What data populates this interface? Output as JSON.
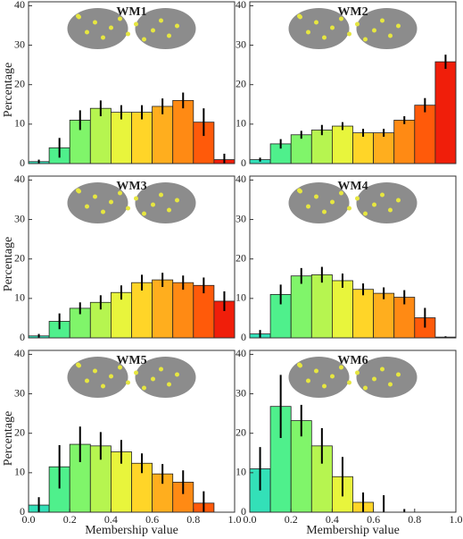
{
  "chart_data": [
    {
      "type": "histogram",
      "title": "WM1",
      "ylabel": "Percentage",
      "bins": [
        0,
        0.1,
        0.2,
        0.3,
        0.4,
        0.5,
        0.6,
        0.7,
        0.8,
        0.9,
        1.0
      ],
      "values": [
        0.5,
        4,
        11,
        14,
        13,
        13,
        14.5,
        16,
        10.5,
        1
      ],
      "errors": [
        0.5,
        2.5,
        2.5,
        2,
        1.8,
        1.8,
        2,
        2,
        3.5,
        1.5
      ],
      "colors": [
        "#33e0b8",
        "#4ff08c",
        "#80f56a",
        "#b6f550",
        "#e8f53c",
        "#ffd528",
        "#ffae1e",
        "#ff8a14",
        "#ff5a0a",
        "#f01e0a"
      ],
      "xlim": [
        0,
        1
      ],
      "ylim": [
        0,
        41
      ],
      "yticks": [
        0,
        10,
        20,
        30,
        40
      ]
    },
    {
      "type": "histogram",
      "title": "WM2",
      "bins": [
        0,
        0.1,
        0.2,
        0.3,
        0.4,
        0.5,
        0.6,
        0.7,
        0.8,
        0.9,
        1.0
      ],
      "values": [
        1,
        5,
        7.3,
        8.5,
        9.5,
        7.8,
        7.8,
        11,
        14.8,
        25.8
      ],
      "errors": [
        0.5,
        1.2,
        1,
        1.3,
        1,
        1,
        1,
        1,
        1.8,
        1.8
      ],
      "colors": [
        "#33e0b8",
        "#4ff08c",
        "#80f56a",
        "#b6f550",
        "#e8f53c",
        "#ffd528",
        "#ffae1e",
        "#ff8a14",
        "#ff5a0a",
        "#f01e0a"
      ],
      "xlim": [
        0,
        1
      ],
      "ylim": [
        0,
        41
      ],
      "yticks": [
        0,
        10,
        20,
        30,
        40
      ]
    },
    {
      "type": "histogram",
      "title": "WM3",
      "ylabel": "Percentage",
      "bins": [
        0,
        0.1,
        0.2,
        0.3,
        0.4,
        0.5,
        0.6,
        0.7,
        0.8,
        0.9,
        1.0
      ],
      "values": [
        0.5,
        4.2,
        7.5,
        9,
        11.5,
        14,
        14.7,
        14,
        13.3,
        9.3
      ],
      "errors": [
        0.5,
        2,
        1.5,
        1.8,
        1.8,
        2,
        1.8,
        1.8,
        2,
        2.5
      ],
      "colors": [
        "#33e0b8",
        "#4ff08c",
        "#80f56a",
        "#b6f550",
        "#e8f53c",
        "#ffd528",
        "#ffae1e",
        "#ff8a14",
        "#ff5a0a",
        "#f01e0a"
      ],
      "xlim": [
        0,
        1
      ],
      "ylim": [
        0,
        41
      ],
      "yticks": [
        0,
        10,
        20,
        30,
        40
      ]
    },
    {
      "type": "histogram",
      "title": "WM4",
      "bins": [
        0,
        0.1,
        0.2,
        0.3,
        0.4,
        0.5,
        0.6,
        0.7,
        0.8,
        0.9,
        1.0
      ],
      "values": [
        1,
        11,
        15.7,
        16,
        14.5,
        12.3,
        11.3,
        10.3,
        5.1,
        0.2
      ],
      "errors": [
        1,
        2.5,
        2,
        2,
        1.8,
        1.5,
        1.5,
        1.8,
        2.5,
        0.2
      ],
      "colors": [
        "#33e0b8",
        "#4ff08c",
        "#80f56a",
        "#b6f550",
        "#e8f53c",
        "#ffd528",
        "#ffae1e",
        "#ff8a14",
        "#ff5a0a",
        "#f01e0a"
      ],
      "xlim": [
        0,
        1
      ],
      "ylim": [
        0,
        41
      ],
      "yticks": [
        0,
        10,
        20,
        30,
        40
      ]
    },
    {
      "type": "histogram",
      "title": "WM5",
      "ylabel": "Percentage",
      "xlabel": "Membership value",
      "bins": [
        0,
        0.1,
        0.2,
        0.3,
        0.4,
        0.5,
        0.6,
        0.7,
        0.8,
        0.9,
        1.0
      ],
      "values": [
        1.8,
        11.5,
        17.2,
        16.8,
        15.3,
        12.4,
        9.7,
        7.6,
        2.3,
        0
      ],
      "errors": [
        2,
        5.5,
        4.5,
        3.5,
        3,
        2.5,
        2.5,
        3,
        3,
        0
      ],
      "colors": [
        "#33e0b8",
        "#4ff08c",
        "#80f56a",
        "#b6f550",
        "#e8f53c",
        "#ffd528",
        "#ffae1e",
        "#ff8a14",
        "#ff5a0a",
        "#f01e0a"
      ],
      "xlim": [
        0,
        1
      ],
      "ylim": [
        0,
        41
      ],
      "yticks": [
        0,
        10,
        20,
        30,
        40
      ],
      "xticks": [
        {
          "value": 0,
          "label": "0.0"
        },
        0.2,
        0.4,
        0.6,
        0.8,
        {
          "value": 1,
          "label": "1.0"
        }
      ]
    },
    {
      "type": "histogram",
      "title": "WM6",
      "xlabel": "Membership value",
      "bins": [
        0,
        0.1,
        0.2,
        0.3,
        0.4,
        0.5,
        0.6,
        0.7,
        0.8,
        0.9,
        1.0
      ],
      "values": [
        11,
        26.8,
        23.2,
        16.8,
        9,
        2.5,
        0,
        0,
        0,
        0
      ],
      "errors": [
        5.5,
        8,
        4,
        4.5,
        5,
        2.5,
        4.3,
        0.8,
        0,
        0
      ],
      "colors": [
        "#33e0b8",
        "#4ff08c",
        "#80f56a",
        "#b6f550",
        "#e8f53c",
        "#ffd528",
        "#ffae1e",
        "#ff8a14",
        "#ff5a0a",
        "#f01e0a"
      ],
      "xlim": [
        0,
        1
      ],
      "ylim": [
        0,
        41
      ],
      "yticks": [
        0,
        10,
        20,
        30,
        40
      ],
      "xticks": [
        {
          "value": 0,
          "label": "0.0"
        },
        0.2,
        0.4,
        0.6,
        0.8,
        {
          "value": 1,
          "label": "1.0"
        }
      ]
    }
  ]
}
